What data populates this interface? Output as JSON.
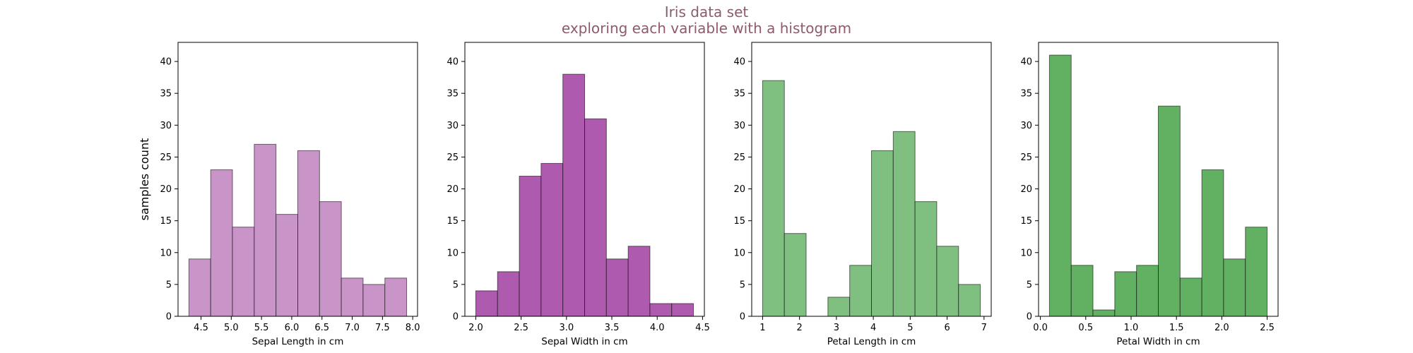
{
  "title": {
    "line1": "Iris data set",
    "line2": "exploring each variable with a histogram",
    "color": "#8e5a6e"
  },
  "chart_data": [
    {
      "type": "bar",
      "histogram": true,
      "xlabel": "Sepal Length in cm",
      "ylabel": "samples count",
      "color": "#c994c7",
      "bin_edges": [
        4.3,
        4.66,
        5.02,
        5.38,
        5.74,
        6.1,
        6.46,
        6.82,
        7.18,
        7.54,
        7.9
      ],
      "values": [
        9,
        23,
        14,
        27,
        16,
        26,
        18,
        6,
        5,
        6
      ],
      "xlim": [
        4.12,
        8.08
      ],
      "ylim": [
        0,
        43
      ],
      "xticks": [
        "4.5",
        "5.0",
        "5.5",
        "6.0",
        "6.5",
        "7.0",
        "7.5",
        "8.0"
      ],
      "yticks": [
        "0",
        "5",
        "10",
        "15",
        "20",
        "25",
        "30",
        "35",
        "40"
      ]
    },
    {
      "type": "bar",
      "histogram": true,
      "xlabel": "Sepal Width in cm",
      "ylabel": "",
      "color": "#ae5aae",
      "bin_edges": [
        2.0,
        2.24,
        2.48,
        2.72,
        2.96,
        3.2,
        3.44,
        3.68,
        3.92,
        4.16,
        4.4
      ],
      "values": [
        4,
        7,
        22,
        24,
        38,
        31,
        9,
        11,
        2,
        2
      ],
      "xlim": [
        1.88,
        4.52
      ],
      "ylim": [
        0,
        43
      ],
      "xticks": [
        "2.0",
        "2.5",
        "3.0",
        "3.5",
        "4.0",
        "4.5"
      ],
      "yticks": [
        "0",
        "5",
        "10",
        "15",
        "20",
        "25",
        "30",
        "35",
        "40"
      ]
    },
    {
      "type": "bar",
      "histogram": true,
      "xlabel": "Petal Length in cm",
      "ylabel": "",
      "color": "#7fbf7f",
      "bin_edges": [
        1.0,
        1.59,
        2.18,
        2.77,
        3.36,
        3.95,
        4.54,
        5.13,
        5.72,
        6.31,
        6.9
      ],
      "values": [
        37,
        13,
        0,
        3,
        8,
        26,
        29,
        18,
        11,
        5
      ],
      "xlim": [
        0.705,
        7.195
      ],
      "ylim": [
        0,
        43
      ],
      "xticks": [
        "1",
        "2",
        "3",
        "4",
        "5",
        "6",
        "7"
      ],
      "yticks": [
        "0",
        "5",
        "10",
        "15",
        "20",
        "25",
        "30",
        "35",
        "40"
      ]
    },
    {
      "type": "bar",
      "histogram": true,
      "xlabel": "Petal Width in cm",
      "ylabel": "",
      "color": "#62b062",
      "bin_edges": [
        0.1,
        0.34,
        0.58,
        0.82,
        1.06,
        1.3,
        1.54,
        1.78,
        2.02,
        2.26,
        2.5
      ],
      "values": [
        41,
        8,
        1,
        7,
        8,
        33,
        6,
        23,
        9,
        14
      ],
      "xlim": [
        -0.02,
        2.62
      ],
      "ylim": [
        0,
        43
      ],
      "xticks": [
        "0.0",
        "0.5",
        "1.0",
        "1.5",
        "2.0",
        "2.5"
      ],
      "yticks": [
        "0",
        "5",
        "10",
        "15",
        "20",
        "25",
        "30",
        "35",
        "40"
      ]
    }
  ]
}
